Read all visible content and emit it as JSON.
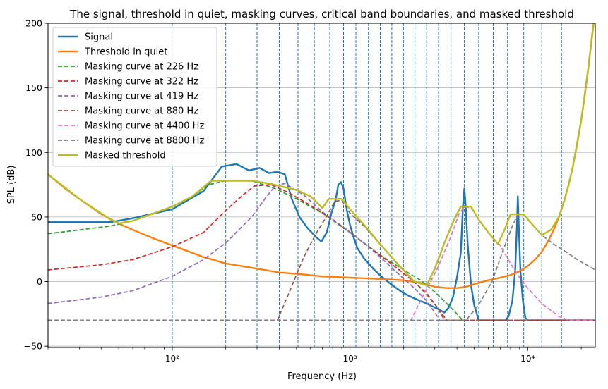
{
  "chart_data": {
    "type": "line",
    "title": "The signal, threshold in quiet, masking curves, critical band boundaries, and masked threshold",
    "xlabel": "Frequency (Hz)",
    "ylabel": "SPL (dB)",
    "xscale": "log",
    "xlim": [
      20,
      24000
    ],
    "ylim": [
      -51,
      200
    ],
    "grid": "horizontal",
    "legend_position": "upper-left",
    "x_ticks": [
      {
        "value": 100,
        "label": "10²"
      },
      {
        "value": 1000,
        "label": "10³"
      },
      {
        "value": 10000,
        "label": "10⁴"
      }
    ],
    "y_ticks": [
      -50,
      0,
      50,
      100,
      150,
      200
    ],
    "band_boundaries": [
      100,
      200,
      300,
      400,
      510,
      630,
      770,
      920,
      1080,
      1270,
      1480,
      1720,
      2000,
      2320,
      2700,
      3150,
      3700,
      4400,
      5300,
      6400,
      7700,
      9500,
      12000,
      15500
    ],
    "series": [
      {
        "name": "Signal",
        "color": "#1f77b4",
        "style": "solid",
        "width": 2.4,
        "points": [
          [
            20,
            46
          ],
          [
            45,
            46
          ],
          [
            60,
            49
          ],
          [
            100,
            56
          ],
          [
            150,
            70
          ],
          [
            190,
            89
          ],
          [
            230,
            91
          ],
          [
            270,
            86
          ],
          [
            310,
            88
          ],
          [
            350,
            84
          ],
          [
            390,
            85
          ],
          [
            430,
            83
          ],
          [
            470,
            64
          ],
          [
            520,
            50
          ],
          [
            580,
            41
          ],
          [
            650,
            34
          ],
          [
            690,
            31
          ],
          [
            740,
            38
          ],
          [
            790,
            54
          ],
          [
            830,
            63
          ],
          [
            860,
            75
          ],
          [
            890,
            77
          ],
          [
            920,
            72
          ],
          [
            960,
            55
          ],
          [
            1000,
            44
          ],
          [
            1050,
            34
          ],
          [
            1100,
            26
          ],
          [
            1200,
            18
          ],
          [
            1350,
            10
          ],
          [
            1500,
            4
          ],
          [
            1700,
            -2
          ],
          [
            2000,
            -9
          ],
          [
            2300,
            -13
          ],
          [
            2700,
            -17
          ],
          [
            3100,
            -21
          ],
          [
            3400,
            -24
          ],
          [
            3600,
            -20
          ],
          [
            3800,
            -12
          ],
          [
            4000,
            3
          ],
          [
            4200,
            22
          ],
          [
            4330,
            60
          ],
          [
            4400,
            72
          ],
          [
            4470,
            60
          ],
          [
            4600,
            28
          ],
          [
            4800,
            -3
          ],
          [
            5000,
            -18
          ],
          [
            5300,
            -30
          ],
          [
            7500,
            -30
          ],
          [
            7800,
            -27
          ],
          [
            8200,
            -15
          ],
          [
            8500,
            8
          ],
          [
            8700,
            44
          ],
          [
            8800,
            66
          ],
          [
            8900,
            44
          ],
          [
            9100,
            8
          ],
          [
            9400,
            -15
          ],
          [
            9700,
            -28
          ],
          [
            10000,
            -30
          ],
          [
            24000,
            -30
          ]
        ]
      },
      {
        "name": "Threshold in quiet",
        "color": "#ff7f0e",
        "style": "solid",
        "width": 2.4,
        "points": [
          [
            20,
            83
          ],
          [
            25,
            72
          ],
          [
            30,
            64
          ],
          [
            40,
            52
          ],
          [
            50,
            45
          ],
          [
            60,
            40
          ],
          [
            80,
            33
          ],
          [
            100,
            28
          ],
          [
            150,
            19
          ],
          [
            200,
            14
          ],
          [
            300,
            10
          ],
          [
            400,
            7
          ],
          [
            500,
            6
          ],
          [
            700,
            4
          ],
          [
            1000,
            3
          ],
          [
            1500,
            2
          ],
          [
            2000,
            1
          ],
          [
            2500,
            -1
          ],
          [
            3000,
            -4
          ],
          [
            3500,
            -5
          ],
          [
            4000,
            -5
          ],
          [
            4500,
            -4
          ],
          [
            5000,
            -2
          ],
          [
            6000,
            1
          ],
          [
            7000,
            3
          ],
          [
            8000,
            5
          ],
          [
            9000,
            8
          ],
          [
            10000,
            12
          ],
          [
            11000,
            17
          ],
          [
            12000,
            23
          ],
          [
            13000,
            31
          ],
          [
            14000,
            40
          ],
          [
            15000,
            50
          ],
          [
            16000,
            62
          ],
          [
            17000,
            75
          ],
          [
            18000,
            90
          ],
          [
            19000,
            107
          ],
          [
            20000,
            125
          ],
          [
            21000,
            145
          ],
          [
            22000,
            167
          ],
          [
            23000,
            190
          ],
          [
            23500,
            200
          ]
        ]
      },
      {
        "name": "Masking curve at 226 Hz",
        "color": "#2ca02c",
        "style": "dashed",
        "width": 1.7,
        "points": [
          [
            20,
            37
          ],
          [
            30,
            40
          ],
          [
            45,
            43
          ],
          [
            60,
            47
          ],
          [
            100,
            58
          ],
          [
            130,
            66
          ],
          [
            160,
            75
          ],
          [
            200,
            78
          ],
          [
            280,
            78
          ],
          [
            380,
            72
          ],
          [
            500,
            64
          ],
          [
            700,
            53
          ],
          [
            1000,
            38
          ],
          [
            1500,
            20
          ],
          [
            2000,
            9
          ],
          [
            2500,
            1
          ],
          [
            3000,
            -8
          ],
          [
            3500,
            -17
          ],
          [
            4000,
            -25
          ],
          [
            4300,
            -30
          ],
          [
            24000,
            -30
          ]
        ]
      },
      {
        "name": "Masking curve at 322 Hz",
        "color": "#d62728",
        "style": "dashed",
        "width": 1.7,
        "points": [
          [
            20,
            9
          ],
          [
            40,
            13
          ],
          [
            60,
            17
          ],
          [
            100,
            27
          ],
          [
            150,
            38
          ],
          [
            200,
            55
          ],
          [
            250,
            67
          ],
          [
            290,
            74
          ],
          [
            360,
            75
          ],
          [
            450,
            69
          ],
          [
            600,
            59
          ],
          [
            800,
            48
          ],
          [
            1000,
            38
          ],
          [
            1300,
            26
          ],
          [
            1700,
            14
          ],
          [
            2200,
            2
          ],
          [
            2700,
            -9
          ],
          [
            3100,
            -20
          ],
          [
            3500,
            -30
          ],
          [
            24000,
            -30
          ]
        ]
      },
      {
        "name": "Masking curve at 419 Hz",
        "color": "#9467bd",
        "style": "dashed",
        "width": 1.7,
        "points": [
          [
            20,
            -17
          ],
          [
            40,
            -12
          ],
          [
            60,
            -7
          ],
          [
            100,
            4
          ],
          [
            150,
            17
          ],
          [
            200,
            30
          ],
          [
            280,
            50
          ],
          [
            340,
            66
          ],
          [
            380,
            74
          ],
          [
            430,
            76
          ],
          [
            550,
            67
          ],
          [
            700,
            54
          ],
          [
            900,
            43
          ],
          [
            1100,
            34
          ],
          [
            1400,
            22
          ],
          [
            1800,
            8
          ],
          [
            2300,
            -5
          ],
          [
            2700,
            -15
          ],
          [
            3000,
            -24
          ],
          [
            3200,
            -30
          ],
          [
            24000,
            -30
          ]
        ]
      },
      {
        "name": "Masking curve at 880 Hz",
        "color": "#8c564b",
        "style": "dashed",
        "width": 1.7,
        "points": [
          [
            20,
            -30
          ],
          [
            390,
            -30
          ],
          [
            450,
            -10
          ],
          [
            550,
            19
          ],
          [
            650,
            38
          ],
          [
            750,
            52
          ],
          [
            820,
            62
          ],
          [
            900,
            63
          ],
          [
            1000,
            53
          ],
          [
            1200,
            43
          ],
          [
            1500,
            28
          ],
          [
            1900,
            12
          ],
          [
            2300,
            0
          ],
          [
            2700,
            -10
          ],
          [
            3100,
            -20
          ],
          [
            3400,
            -30
          ],
          [
            24000,
            -30
          ]
        ]
      },
      {
        "name": "Masking curve at 4400 Hz",
        "color": "#e377c2",
        "style": "dashed",
        "width": 1.7,
        "points": [
          [
            20,
            -30
          ],
          [
            2200,
            -30
          ],
          [
            2600,
            -10
          ],
          [
            3100,
            10
          ],
          [
            3700,
            35
          ],
          [
            4100,
            52
          ],
          [
            4400,
            58
          ],
          [
            4800,
            57
          ],
          [
            5300,
            48
          ],
          [
            6000,
            38
          ],
          [
            7000,
            28
          ],
          [
            8000,
            14
          ],
          [
            9000,
            3
          ],
          [
            10000,
            -5
          ],
          [
            12000,
            -17
          ],
          [
            15000,
            -27
          ],
          [
            17000,
            -30
          ],
          [
            24000,
            -30
          ]
        ]
      },
      {
        "name": "Masking curve at 8800 Hz",
        "color": "#7f7f7f",
        "style": "dashed",
        "width": 1.7,
        "points": [
          [
            20,
            -30
          ],
          [
            4500,
            -30
          ],
          [
            5300,
            -18
          ],
          [
            6300,
            0
          ],
          [
            7300,
            25
          ],
          [
            8200,
            43
          ],
          [
            8800,
            52
          ],
          [
            9500,
            52
          ],
          [
            10500,
            45
          ],
          [
            12000,
            36
          ],
          [
            14000,
            29
          ],
          [
            16000,
            24
          ],
          [
            19000,
            17
          ],
          [
            24000,
            9
          ]
        ]
      },
      {
        "name": "Masked threshold",
        "color": "#bcbd22",
        "style": "solid",
        "width": 2.4,
        "points": [
          [
            20,
            83
          ],
          [
            30,
            64
          ],
          [
            45,
            48
          ],
          [
            50,
            45
          ],
          [
            60,
            47
          ],
          [
            100,
            58
          ],
          [
            130,
            66
          ],
          [
            165,
            78
          ],
          [
            200,
            78
          ],
          [
            280,
            78
          ],
          [
            350,
            76
          ],
          [
            430,
            73
          ],
          [
            500,
            71
          ],
          [
            600,
            66
          ],
          [
            700,
            57
          ],
          [
            760,
            64
          ],
          [
            900,
            64
          ],
          [
            1000,
            56
          ],
          [
            1200,
            44
          ],
          [
            1500,
            28
          ],
          [
            1900,
            12
          ],
          [
            2300,
            0
          ],
          [
            2700,
            -3
          ],
          [
            3000,
            10
          ],
          [
            3400,
            30
          ],
          [
            3800,
            46
          ],
          [
            4200,
            58
          ],
          [
            4800,
            58
          ],
          [
            5300,
            48
          ],
          [
            6000,
            38
          ],
          [
            6800,
            29
          ],
          [
            7400,
            40
          ],
          [
            8000,
            52
          ],
          [
            9500,
            52
          ],
          [
            10500,
            45
          ],
          [
            12000,
            36
          ],
          [
            13500,
            40
          ],
          [
            15000,
            50
          ],
          [
            16000,
            62
          ],
          [
            17000,
            75
          ],
          [
            18000,
            90
          ],
          [
            20000,
            125
          ],
          [
            22000,
            167
          ],
          [
            23500,
            200
          ]
        ]
      }
    ]
  }
}
